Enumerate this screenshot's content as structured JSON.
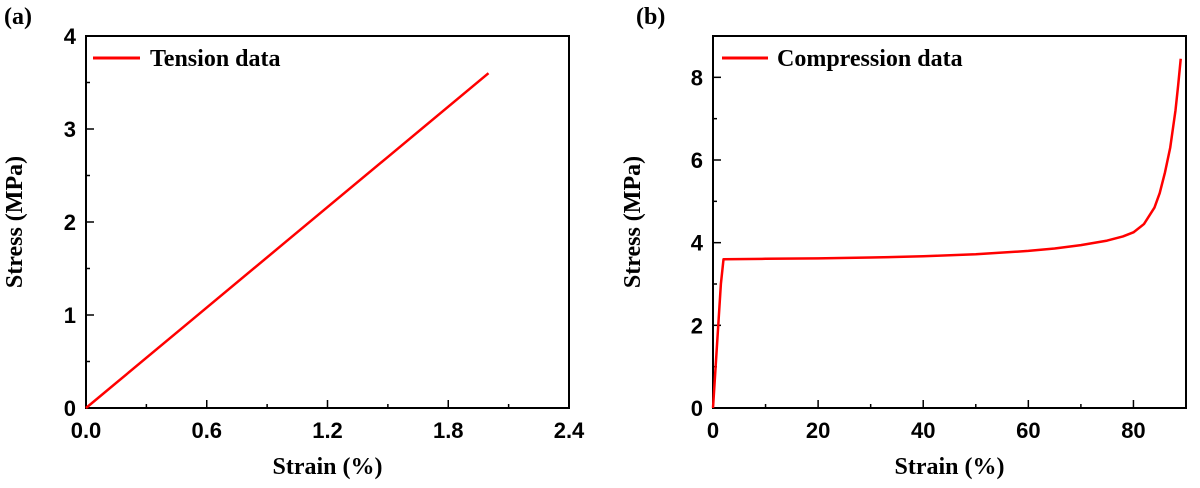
{
  "chart_data": [
    {
      "type": "line",
      "panel_label": "(a)",
      "xlabel": "Strain (%)",
      "ylabel": "Stress (MPa)",
      "xlim": [
        0,
        2.4
      ],
      "ylim": [
        0,
        4
      ],
      "xticks": [
        "0.0",
        "0.6",
        "1.2",
        "1.8",
        "2.4"
      ],
      "xtick_values": [
        0,
        0.6,
        1.2,
        1.8,
        2.4
      ],
      "yticks": [
        "0",
        "1",
        "2",
        "3",
        "4"
      ],
      "ytick_values": [
        0,
        1,
        2,
        3,
        4
      ],
      "grid": false,
      "legend_position": "top-left",
      "series": [
        {
          "name": "Tension data",
          "color": "#ff0000",
          "x": [
            0,
            0.5,
            1.0,
            1.5,
            2.0
          ],
          "y": [
            0,
            0.9,
            1.8,
            2.7,
            3.6
          ]
        }
      ]
    },
    {
      "type": "line",
      "panel_label": "(b)",
      "xlabel": "Strain (%)",
      "ylabel": "Stress (MPa)",
      "xlim": [
        0,
        90
      ],
      "ylim": [
        0,
        9
      ],
      "xticks": [
        "0",
        "20",
        "40",
        "60",
        "80"
      ],
      "xtick_values": [
        0,
        20,
        40,
        60,
        80
      ],
      "yticks": [
        "0",
        "2",
        "4",
        "6",
        "8"
      ],
      "ytick_values": [
        0,
        2,
        4,
        6,
        8
      ],
      "grid": false,
      "legend_position": "top-left",
      "series": [
        {
          "name": "Compression data",
          "color": "#ff0000",
          "x": [
            0,
            0.5,
            1.0,
            1.5,
            2.0,
            10,
            20,
            30,
            40,
            50,
            60,
            65,
            70,
            75,
            78,
            80,
            82,
            84,
            85,
            86,
            87,
            88,
            88.5,
            89
          ],
          "y": [
            0,
            1.0,
            2.0,
            3.0,
            3.6,
            3.61,
            3.62,
            3.64,
            3.67,
            3.72,
            3.8,
            3.86,
            3.94,
            4.05,
            4.15,
            4.25,
            4.45,
            4.85,
            5.2,
            5.7,
            6.3,
            7.2,
            7.8,
            8.45
          ]
        }
      ]
    }
  ]
}
